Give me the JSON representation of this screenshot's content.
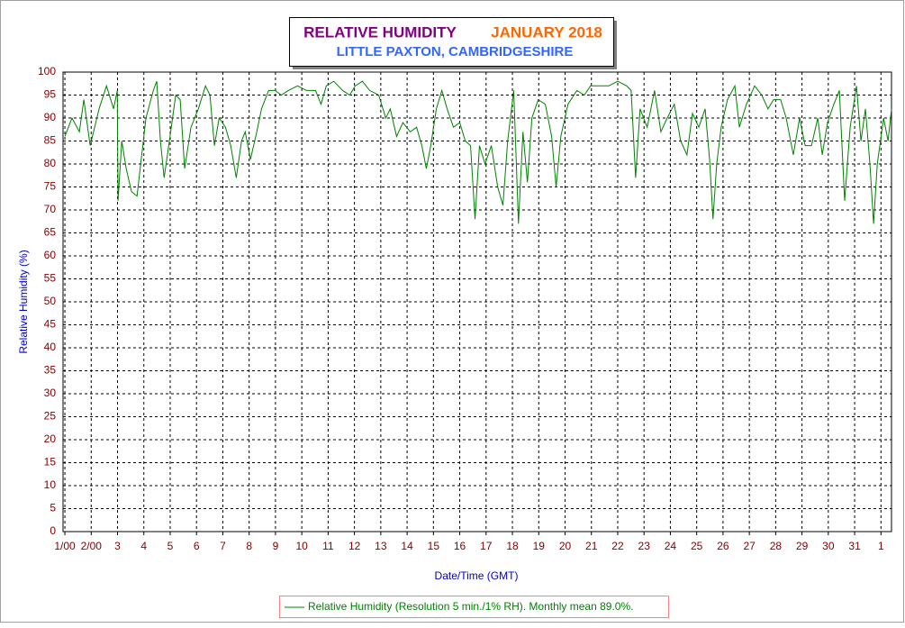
{
  "chart_data": {
    "type": "line",
    "title": "RELATIVE HUMIDITY",
    "period": "JANUARY 2018",
    "subtitle": "LITTLE PAXTON, CAMBRIDGESHIRE",
    "xlabel": "Date/Time (GMT)",
    "ylabel": "Relative Humidity (%)",
    "x": [
      1.0,
      1.27,
      1.55,
      1.72,
      1.96,
      2.13,
      2.3,
      2.58,
      2.85,
      2.99,
      3.02,
      3.16,
      3.33,
      3.53,
      3.74,
      3.88,
      4.08,
      4.36,
      4.49,
      4.63,
      4.77,
      4.97,
      5.21,
      5.38,
      5.55,
      5.79,
      6.07,
      6.34,
      6.51,
      6.68,
      6.86,
      7.1,
      7.3,
      7.51,
      7.71,
      7.85,
      8.05,
      8.29,
      8.47,
      8.74,
      8.98,
      9.22,
      9.49,
      9.84,
      10.18,
      10.52,
      10.73,
      10.93,
      11.21,
      11.55,
      11.82,
      12.03,
      12.3,
      12.58,
      12.92,
      13.19,
      13.36,
      13.6,
      13.84,
      14.12,
      14.36,
      14.56,
      14.73,
      14.9,
      15.11,
      15.32,
      15.52,
      15.76,
      16.0,
      16.21,
      16.41,
      16.58,
      16.75,
      16.96,
      17.2,
      17.44,
      17.64,
      17.82,
      18.05,
      18.23,
      18.4,
      18.57,
      18.74,
      18.98,
      19.25,
      19.49,
      19.66,
      19.84,
      20.11,
      20.45,
      20.73,
      20.97,
      21.31,
      21.66,
      22.0,
      22.34,
      22.51,
      22.68,
      22.85,
      23.12,
      23.4,
      23.64,
      23.88,
      24.15,
      24.39,
      24.63,
      24.84,
      25.08,
      25.32,
      25.49,
      25.62,
      25.76,
      25.93,
      26.17,
      26.45,
      26.62,
      26.89,
      27.2,
      27.47,
      27.71,
      27.92,
      28.19,
      28.4,
      28.67,
      28.91,
      29.12,
      29.36,
      29.6,
      29.77,
      29.97,
      30.21,
      30.42,
      30.62,
      30.83,
      31.07,
      31.24,
      31.41,
      31.58,
      31.72,
      31.86,
      32.1,
      32.27,
      32.4
    ],
    "series": [
      {
        "name": "Relative Humidity (Resolution 5 min./1% RH). Monthly mean 89.0%.",
        "color": "#008000",
        "values": [
          86,
          90,
          87,
          94,
          84,
          88,
          92,
          97,
          92,
          96,
          72,
          85,
          79,
          74,
          73,
          80,
          90,
          96,
          98,
          85,
          77,
          85,
          95,
          94,
          79,
          88,
          92,
          97,
          95,
          84,
          90,
          88,
          84,
          77,
          85,
          87,
          81,
          87,
          92,
          96,
          96,
          95,
          96,
          97,
          96,
          96,
          93,
          97,
          98,
          96,
          95,
          97,
          98,
          96,
          95,
          90,
          92,
          86,
          89,
          87,
          88,
          84,
          79,
          84,
          92,
          96,
          92,
          88,
          89,
          85,
          84,
          68,
          84,
          80,
          84,
          75,
          71,
          85,
          96,
          67,
          87,
          76,
          90,
          94,
          93,
          86,
          75,
          86,
          93,
          96,
          95,
          97,
          97,
          97,
          98,
          97,
          96,
          77,
          92,
          88,
          96,
          87,
          90,
          93,
          85,
          82,
          91,
          88,
          92,
          81,
          68,
          80,
          88,
          94,
          97,
          88,
          93,
          97,
          95,
          92,
          94,
          94,
          90,
          82,
          90,
          84,
          84,
          90,
          82,
          89,
          93,
          96,
          72,
          88,
          97,
          85,
          92,
          80,
          67,
          80,
          90,
          85,
          92
        ]
      }
    ],
    "xlim": [
      0.93,
      32.4
    ],
    "xticks": [
      {
        "value": 1,
        "label": "1/00"
      },
      {
        "value": 2,
        "label": "2/00"
      },
      3,
      4,
      5,
      6,
      7,
      8,
      9,
      10,
      11,
      12,
      13,
      14,
      15,
      16,
      17,
      18,
      19,
      20,
      21,
      22,
      23,
      24,
      25,
      26,
      27,
      28,
      29,
      30,
      31,
      {
        "value": 32,
        "label": "1"
      }
    ],
    "ylim": [
      0,
      100
    ],
    "yticks": [
      0,
      5,
      10,
      15,
      20,
      25,
      30,
      35,
      40,
      45,
      50,
      55,
      60,
      65,
      70,
      75,
      80,
      85,
      90,
      95,
      100
    ],
    "grid": true,
    "legend": "bottom"
  }
}
